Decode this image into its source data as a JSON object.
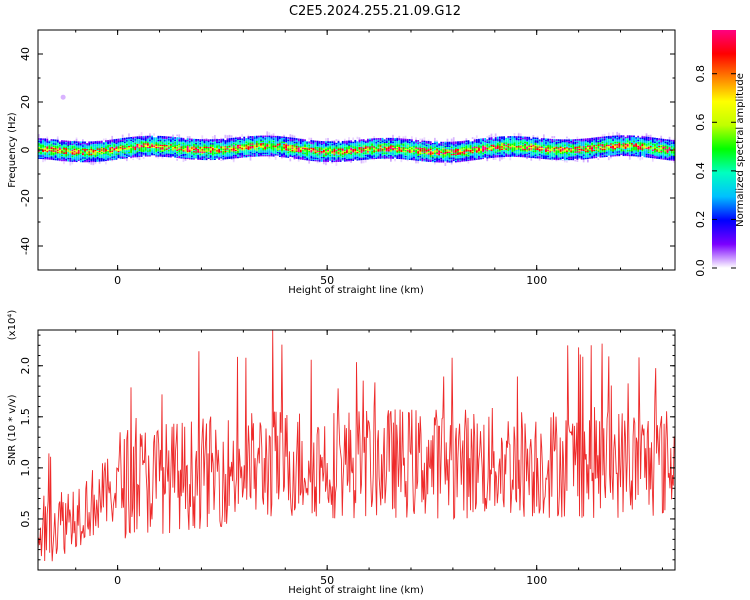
{
  "title": "C2E5.2024.255.21.09.G12",
  "chart_data": [
    {
      "type": "heatmap",
      "xlabel": "Height of straight line (km)",
      "ylabel": "Frequency (Hz)",
      "xlim": [
        -19,
        133
      ],
      "ylim": [
        -50,
        50
      ],
      "xticks": [
        0,
        50,
        100
      ],
      "yticks": [
        -40,
        -20,
        0,
        20,
        40
      ],
      "colorbar": {
        "label": "Normalized spectral amplitude",
        "range": [
          0,
          0.98
        ],
        "ticks": [
          "0.0",
          "0.2",
          "0.4",
          "0.6",
          "0.8"
        ],
        "colors": [
          "#ffffff",
          "#7b00ff",
          "#0000ff",
          "#00c0ff",
          "#00ffc0",
          "#00ff00",
          "#c0ff00",
          "#ffff00",
          "#ff8000",
          "#ff0000",
          "#ff0080"
        ]
      },
      "band_center_hz": 0.5,
      "band_halfwidth_hz": 4,
      "outlier": {
        "x": -13,
        "y": 22
      }
    },
    {
      "type": "line",
      "xlabel": "Height of straight line (km)",
      "ylabel": "SNR (10 * v/v)",
      "y_multiplier": "(x10⁴)",
      "xlim": [
        -19,
        133
      ],
      "ylim": [
        0,
        2.35
      ],
      "xticks": [
        0,
        50,
        100
      ],
      "yticks": [
        "0.5",
        "1.0",
        "1.5",
        "2.0"
      ],
      "color": "#ee2a2a",
      "peaks": [
        {
          "x": 37,
          "y": 2.35
        },
        {
          "x": 113,
          "y": 2.2
        },
        {
          "x": 110,
          "y": 2.18
        },
        {
          "x": 110.5,
          "y": 2.11
        }
      ]
    }
  ]
}
